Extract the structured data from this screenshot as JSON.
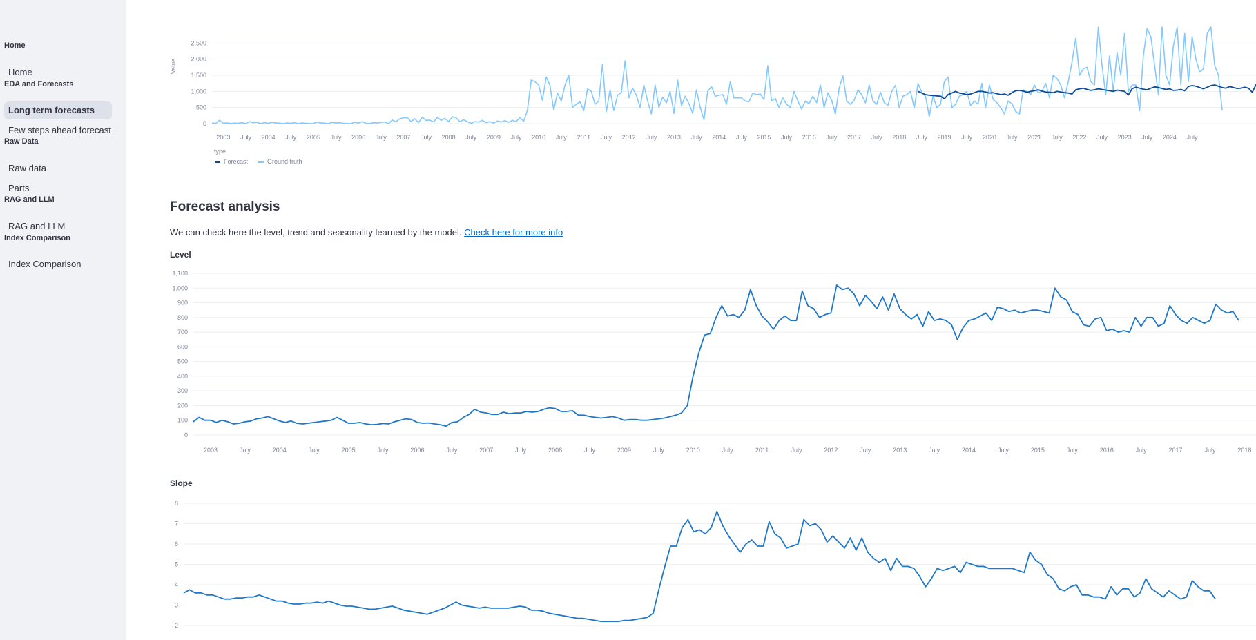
{
  "sidebar": {
    "sections": [
      {
        "label": "Home",
        "items": [
          {
            "label": "Home",
            "active": false
          }
        ]
      },
      {
        "label": "EDA and Forecasts",
        "items": [
          {
            "label": "Long term forecasts",
            "active": true
          },
          {
            "label": "Few steps ahead forecast",
            "active": false
          }
        ]
      },
      {
        "label": "Raw Data",
        "items": [
          {
            "label": "Raw data",
            "active": false
          },
          {
            "label": "Parts",
            "active": false
          }
        ]
      },
      {
        "label": "RAG and LLM",
        "items": [
          {
            "label": "RAG and LLM",
            "active": false
          }
        ]
      },
      {
        "label": "Index Comparison",
        "items": [
          {
            "label": "Index Comparison",
            "active": false
          }
        ]
      }
    ]
  },
  "main": {
    "analysis_title": "Forecast analysis",
    "analysis_text": "We can check here the level, trend and seasonality learned by the model.",
    "analysis_link": "Check here for more info",
    "level_title": "Level",
    "slope_title": "Slope"
  },
  "colors": {
    "forecast": "#0b4b9a",
    "ground_truth": "#83c9ff",
    "level": "#1f77c8",
    "slope": "#1f77c8",
    "grid": "#eceef2"
  },
  "chart_data": [
    {
      "type": "line",
      "ylabel": "Value",
      "legend_title": "type",
      "legend_position": "bottom-left",
      "ylim": [
        0,
        3000
      ],
      "yticks": [
        0,
        500,
        1000,
        1500,
        2000,
        2500
      ],
      "xlim": [
        "2002-10",
        "2025-12"
      ],
      "x_tick_labels": [
        "2003",
        "July",
        "2004",
        "July",
        "2005",
        "July",
        "2006",
        "July",
        "2007",
        "July",
        "2008",
        "July",
        "2009",
        "July",
        "2010",
        "July",
        "2011",
        "July",
        "2012",
        "July",
        "2013",
        "July",
        "2014",
        "July",
        "2015",
        "July",
        "2016",
        "July",
        "2017",
        "July",
        "2018",
        "July",
        "2019",
        "July",
        "2020",
        "July",
        "2021",
        "July",
        "2022",
        "July",
        "2023",
        "July",
        "2024",
        "July"
      ],
      "series": [
        {
          "name": "Forecast",
          "start": "2018-06",
          "values": [
            1000,
            950,
            900,
            880,
            870,
            860,
            850,
            770,
            900,
            950,
            1000,
            950,
            930,
            900,
            920,
            960,
            1000,
            1000,
            980,
            950,
            960,
            930,
            900,
            920,
            880,
            960,
            1020,
            1030,
            1010,
            970,
            1000,
            1020,
            1050,
            1010,
            980,
            970,
            960,
            1000,
            980,
            960,
            950,
            920,
            1050,
            1080,
            1100,
            1060,
            1030,
            1050,
            1080,
            1060,
            1040,
            1020,
            1000,
            1040,
            1020,
            1000,
            890,
            1080,
            1130,
            1100,
            1070,
            1050,
            1100,
            1140,
            1120,
            1090,
            1060,
            1080,
            1030,
            1040,
            1060,
            1020,
            1150,
            1180,
            1160,
            1120,
            1080,
            1130,
            1180,
            1200,
            1160,
            1120,
            1100,
            1150,
            1120,
            1090,
            1100,
            1130,
            1100,
            970,
            1210,
            1230,
            1200,
            1160,
            1120,
            1170,
            1230,
            1240,
            1190,
            1150,
            1130,
            1170,
            1140,
            1110
          ]
        },
        {
          "name": "Ground truth",
          "start": "2002-10",
          "values": [
            20,
            5,
            100,
            10,
            20,
            5,
            15,
            10,
            30,
            5,
            60,
            30,
            40,
            0,
            30,
            10,
            40,
            20,
            15,
            0,
            20,
            10,
            30,
            0,
            20,
            10,
            5,
            0,
            50,
            20,
            15,
            0,
            40,
            20,
            30,
            10,
            5,
            0,
            40,
            20,
            60,
            10,
            5,
            30,
            20,
            40,
            50,
            0,
            110,
            60,
            150,
            180,
            180,
            60,
            150,
            30,
            200,
            100,
            110,
            50,
            200,
            100,
            160,
            60,
            210,
            180,
            60,
            120,
            60,
            10,
            60,
            50,
            100,
            30,
            60,
            20,
            80,
            50,
            90,
            40,
            100,
            60,
            190,
            70,
            420,
            1350,
            1300,
            1200,
            720,
            1450,
            1180,
            420,
            950,
            700,
            1200,
            1500,
            500,
            600,
            680,
            400,
            1080,
            1000,
            600,
            700,
            1850,
            370,
            1050,
            400,
            880,
            960,
            1950,
            800,
            1100,
            880,
            500,
            1200,
            700,
            300,
            1200,
            500,
            820,
            640,
            1000,
            320,
            1350,
            560,
            850,
            620,
            320,
            1050,
            500,
            120,
            1000,
            1150,
            850,
            880,
            900,
            600,
            1300,
            800,
            800,
            800,
            700,
            680,
            950,
            900,
            920,
            750,
            1800,
            700,
            780,
            500,
            800,
            600,
            500,
            1000,
            700,
            450,
            700,
            620,
            850,
            650,
            1200,
            500,
            950,
            730,
            300,
            1100,
            1480,
            700,
            600,
            720,
            1050,
            900,
            640,
            1200,
            700,
            600,
            970,
            650,
            570,
            1000,
            1190,
            500,
            850,
            900,
            1000,
            480,
            1250,
            970,
            850,
            220,
            860,
            500,
            600,
            1300,
            1450,
            500,
            600,
            850,
            900,
            1000,
            560,
            700,
            600,
            1250,
            500,
            1200,
            750,
            650,
            500,
            300,
            700,
            620,
            380,
            300,
            1050,
            1000,
            900,
            1200,
            950,
            1000,
            1250,
            800,
            1500,
            1400,
            1200,
            800,
            1300,
            1900,
            2650,
            1500,
            1700,
            1750,
            1300,
            1200,
            3000,
            1800,
            900,
            2100,
            1000,
            2200,
            1500,
            2800,
            1000,
            1200,
            1200,
            400,
            2100,
            2950,
            2700,
            1800,
            900,
            3000,
            1500,
            1200,
            2400,
            3000,
            1200,
            2800,
            1300,
            2700,
            2000,
            1600,
            1700,
            2800,
            3000,
            1800,
            1500,
            400
          ]
        }
      ]
    },
    {
      "type": "line",
      "title": "Level",
      "ylim": [
        0,
        1100
      ],
      "yticks": [
        0,
        100,
        200,
        300,
        400,
        500,
        600,
        700,
        800,
        900,
        1000,
        1100
      ],
      "xlim": [
        "2002-10",
        "2018-03"
      ],
      "x_tick_labels": [
        "2003",
        "July",
        "2004",
        "July",
        "2005",
        "July",
        "2006",
        "July",
        "2007",
        "July",
        "2008",
        "July",
        "2009",
        "July",
        "2010",
        "July",
        "2011",
        "July",
        "2012",
        "July",
        "2013",
        "July",
        "2014",
        "July",
        "2015",
        "July",
        "2016",
        "July",
        "2017",
        "July",
        "2018"
      ],
      "series": [
        {
          "name": "",
          "start": "2002-10",
          "values": [
            90,
            120,
            100,
            100,
            85,
            100,
            90,
            75,
            80,
            90,
            95,
            110,
            115,
            125,
            110,
            95,
            85,
            95,
            80,
            75,
            80,
            85,
            90,
            95,
            100,
            120,
            100,
            80,
            80,
            85,
            75,
            70,
            72,
            78,
            75,
            90,
            100,
            110,
            105,
            85,
            80,
            82,
            75,
            70,
            60,
            85,
            90,
            120,
            140,
            175,
            155,
            150,
            140,
            140,
            155,
            145,
            150,
            150,
            160,
            155,
            160,
            175,
            185,
            180,
            160,
            160,
            165,
            135,
            135,
            125,
            120,
            115,
            120,
            125,
            115,
            100,
            105,
            105,
            100,
            100,
            105,
            110,
            115,
            125,
            135,
            150,
            200,
            400,
            560,
            680,
            690,
            800,
            880,
            810,
            820,
            800,
            850,
            990,
            880,
            810,
            770,
            720,
            780,
            810,
            780,
            780,
            980,
            880,
            860,
            800,
            820,
            830,
            1020,
            990,
            1000,
            960,
            880,
            950,
            910,
            860,
            940,
            850,
            960,
            860,
            820,
            790,
            820,
            740,
            840,
            780,
            790,
            780,
            750,
            650,
            730,
            780,
            790,
            810,
            830,
            780,
            870,
            860,
            840,
            850,
            830,
            840,
            850,
            850,
            840,
            830,
            1000,
            940,
            920,
            840,
            820,
            750,
            740,
            790,
            800,
            710,
            720,
            700,
            710,
            700,
            800,
            740,
            800,
            800,
            740,
            760,
            880,
            820,
            780,
            760,
            800,
            780,
            760,
            780,
            890,
            850,
            830,
            840,
            780
          ]
        }
      ]
    },
    {
      "type": "line",
      "title": "Slope",
      "ylim": [
        2,
        8
      ],
      "yticks": [
        2,
        3,
        4,
        5,
        6,
        7,
        8
      ],
      "xlim": [
        "2002-10",
        "2018-03"
      ],
      "series": [
        {
          "name": "",
          "start": "2002-10",
          "values": [
            3.6,
            3.75,
            3.6,
            3.6,
            3.5,
            3.5,
            3.4,
            3.3,
            3.3,
            3.35,
            3.35,
            3.4,
            3.4,
            3.5,
            3.4,
            3.3,
            3.2,
            3.2,
            3.1,
            3.05,
            3.05,
            3.1,
            3.1,
            3.15,
            3.1,
            3.2,
            3.1,
            3.0,
            2.95,
            2.95,
            2.9,
            2.85,
            2.8,
            2.8,
            2.85,
            2.9,
            2.95,
            2.85,
            2.75,
            2.7,
            2.65,
            2.6,
            2.55,
            2.65,
            2.75,
            2.85,
            3.0,
            3.15,
            3.0,
            2.95,
            2.9,
            2.85,
            2.9,
            2.85,
            2.85,
            2.85,
            2.85,
            2.9,
            2.95,
            2.9,
            2.75,
            2.75,
            2.7,
            2.6,
            2.55,
            2.5,
            2.45,
            2.4,
            2.35,
            2.35,
            2.3,
            2.25,
            2.2,
            2.2,
            2.2,
            2.2,
            2.25,
            2.25,
            2.3,
            2.35,
            2.4,
            2.6,
            3.8,
            4.9,
            5.9,
            5.9,
            6.8,
            7.2,
            6.6,
            6.7,
            6.5,
            6.8,
            7.6,
            6.9,
            6.4,
            6.0,
            5.6,
            6.0,
            6.2,
            5.9,
            5.9,
            7.1,
            6.5,
            6.3,
            5.8,
            5.9,
            6.0,
            7.2,
            6.9,
            7.0,
            6.7,
            6.1,
            6.4,
            6.1,
            5.8,
            6.3,
            5.7,
            6.3,
            5.6,
            5.3,
            5.1,
            5.3,
            4.7,
            5.3,
            4.9,
            4.9,
            4.8,
            4.4,
            3.9,
            4.3,
            4.8,
            4.7,
            4.8,
            4.9,
            4.6,
            5.1,
            5.0,
            4.9,
            4.9,
            4.8,
            4.8,
            4.8,
            4.8,
            4.8,
            4.7,
            4.6,
            5.6,
            5.2,
            5.0,
            4.5,
            4.3,
            3.8,
            3.7,
            3.9,
            4.0,
            3.5,
            3.5,
            3.4,
            3.4,
            3.3,
            3.9,
            3.5,
            3.8,
            3.8,
            3.4,
            3.6,
            4.3,
            3.8,
            3.6,
            3.4,
            3.7,
            3.5,
            3.3,
            3.4,
            4.2,
            3.9,
            3.7,
            3.7,
            3.3
          ]
        }
      ]
    }
  ]
}
